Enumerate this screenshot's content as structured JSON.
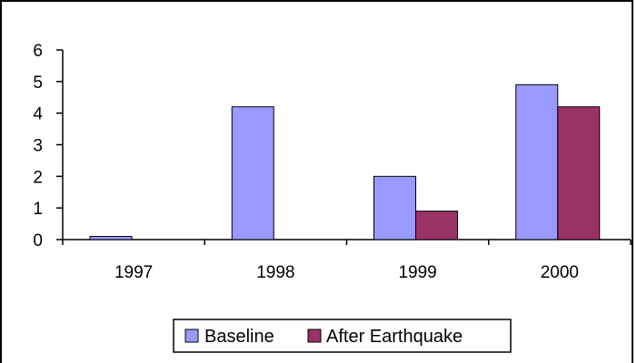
{
  "chart_data": {
    "type": "bar",
    "categories": [
      "1997",
      "1998",
      "1999",
      "2000"
    ],
    "series": [
      {
        "name": "Baseline",
        "values": [
          0.1,
          4.2,
          2.0,
          4.9
        ],
        "color": "#9999ff"
      },
      {
        "name": "After Earthquake",
        "values": [
          0,
          0,
          0.9,
          4.2
        ],
        "color": "#993366"
      }
    ],
    "ylim": [
      0,
      6
    ],
    "yticks": [
      "0",
      "1",
      "2",
      "3",
      "4",
      "5",
      "6"
    ],
    "grid": false,
    "legend_position": "bottom"
  }
}
